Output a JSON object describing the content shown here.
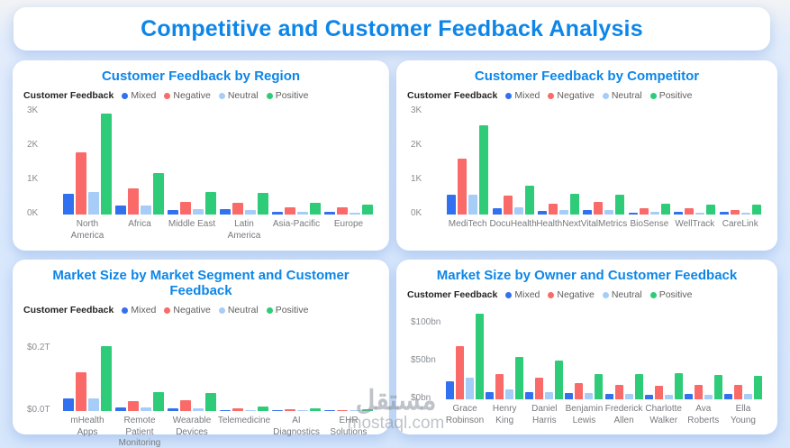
{
  "page": {
    "title": "Competitive and Customer Feedback Analysis"
  },
  "watermark": {
    "brand_arabic": "مستقل",
    "domain": "mostaql.com"
  },
  "colors": {
    "mixed": "#3170EF",
    "negative": "#F96A68",
    "neutral": "#A6CCF8",
    "positive": "#2ECB78",
    "accent_blue": "#0d86e8"
  },
  "chart_data": [
    {
      "type": "bar",
      "title": "Customer Feedback by Region",
      "legend_title": "Customer Feedback",
      "legend_position": "top-left",
      "grid": false,
      "categories": [
        "North America",
        "Africa",
        "Middle East",
        "Latin America",
        "Asia-Pacific",
        "Europe"
      ],
      "category_labels": [
        "North\nAmerica",
        "Africa",
        "Middle East",
        "Latin America",
        "Asia-Pacific",
        "Europe"
      ],
      "series": [
        {
          "name": "Mixed",
          "color": "#3170EF",
          "values": [
            600,
            250,
            130,
            160,
            70,
            80
          ]
        },
        {
          "name": "Negative",
          "color": "#F96A68",
          "values": [
            1800,
            770,
            360,
            350,
            200,
            200
          ]
        },
        {
          "name": "Neutral",
          "color": "#A6CCF8",
          "values": [
            650,
            270,
            150,
            140,
            80,
            60
          ]
        },
        {
          "name": "Positive",
          "color": "#2ECB78",
          "values": [
            2950,
            1200,
            650,
            640,
            330,
            300
          ]
        }
      ],
      "xlabel": "",
      "ylabel": "",
      "ylim": [
        0,
        3000
      ],
      "y_ticks": [
        {
          "label": "0K",
          "value": 0
        },
        {
          "label": "1K",
          "value": 1000
        },
        {
          "label": "2K",
          "value": 2000
        },
        {
          "label": "3K",
          "value": 3000
        }
      ]
    },
    {
      "type": "bar",
      "title": "Customer Feedback by Competitor",
      "legend_title": "Customer Feedback",
      "legend_position": "top-left",
      "grid": false,
      "categories": [
        "MediTech",
        "DocuHealth",
        "HealthNext",
        "VitalMetrics",
        "BioSense",
        "WellTrack",
        "CareLink"
      ],
      "category_labels": [
        "MediTech",
        "DocuHealth",
        "HealthNext",
        "VitalMetrics",
        "BioSense",
        "WellTrack",
        "CareLink"
      ],
      "series": [
        {
          "name": "Mixed",
          "color": "#3170EF",
          "values": [
            580,
            180,
            110,
            120,
            60,
            70,
            70
          ]
        },
        {
          "name": "Negative",
          "color": "#F96A68",
          "values": [
            1630,
            550,
            310,
            360,
            190,
            190,
            140
          ]
        },
        {
          "name": "Neutral",
          "color": "#A6CCF8",
          "values": [
            580,
            200,
            130,
            120,
            70,
            60,
            60
          ]
        },
        {
          "name": "Positive",
          "color": "#2ECB78",
          "values": [
            2600,
            850,
            600,
            570,
            310,
            280,
            280
          ]
        }
      ],
      "xlabel": "",
      "ylabel": "",
      "ylim": [
        0,
        3000
      ],
      "y_ticks": [
        {
          "label": "0K",
          "value": 0
        },
        {
          "label": "1K",
          "value": 1000
        },
        {
          "label": "2K",
          "value": 2000
        },
        {
          "label": "3K",
          "value": 3000
        }
      ]
    },
    {
      "type": "bar",
      "title": "Market Size by Market Segment and Customer Feedback",
      "legend_title": "Customer Feedback",
      "legend_position": "top-left",
      "grid": false,
      "units": "trillions USD",
      "categories": [
        "mHealth Apps",
        "Remote Patient Monitoring",
        "Wearable Devices",
        "Telemedicine",
        "AI Diagnostics",
        "EHR Solutions"
      ],
      "category_labels": [
        "mHealth\nApps",
        "Remote\nPatient\nMonitoring",
        "Wearable\nDevices",
        "Telemedicine",
        "AI\nDiagnostics",
        "EHR Solutions"
      ],
      "series": [
        {
          "name": "Mixed",
          "color": "#3170EF",
          "values": [
            0.04,
            0.011,
            0.009,
            0.003,
            0.002,
            0.001
          ]
        },
        {
          "name": "Negative",
          "color": "#F96A68",
          "values": [
            0.125,
            0.032,
            0.035,
            0.01,
            0.006,
            0.004
          ]
        },
        {
          "name": "Neutral",
          "color": "#A6CCF8",
          "values": [
            0.04,
            0.011,
            0.01,
            0.003,
            0.002,
            0.002
          ]
        },
        {
          "name": "Positive",
          "color": "#2ECB78",
          "values": [
            0.21,
            0.062,
            0.057,
            0.016,
            0.009,
            0.006
          ]
        }
      ],
      "xlabel": "",
      "ylabel": "",
      "ylim": [
        0,
        0.2
      ],
      "y_ticks": [
        {
          "label": "$0.0T",
          "value": 0
        },
        {
          "label": "$0.2T",
          "value": 0.2
        }
      ]
    },
    {
      "type": "bar",
      "title": "Market Size by Owner and Customer Feedback",
      "legend_title": "Customer Feedback",
      "legend_position": "top-left",
      "grid": false,
      "units": "billions USD",
      "categories": [
        "Grace Robinson",
        "Henry King",
        "Daniel Harris",
        "Benjamin Lewis",
        "Frederick Allen",
        "Charlotte Walker",
        "Ava Roberts",
        "Ella Young"
      ],
      "category_labels": [
        "Grace\nRobinson",
        "Henry\nKing",
        "Daniel\nHarris",
        "Benjamin\nLewis",
        "Frederick\nAllen",
        "Charlotte\nWalker",
        "Ava\nRoberts",
        "Ella Young"
      ],
      "series": [
        {
          "name": "Mixed",
          "color": "#3170EF",
          "values": [
            24,
            10,
            10,
            8,
            7,
            6,
            7,
            7
          ]
        },
        {
          "name": "Negative",
          "color": "#F96A68",
          "values": [
            70,
            33,
            28,
            21,
            19,
            18,
            19,
            19
          ]
        },
        {
          "name": "Neutral",
          "color": "#A6CCF8",
          "values": [
            28,
            13,
            10,
            8,
            7,
            6,
            6,
            7
          ]
        },
        {
          "name": "Positive",
          "color": "#2ECB78",
          "values": [
            113,
            56,
            51,
            33,
            33,
            34,
            32,
            31
          ]
        }
      ],
      "xlabel": "",
      "ylabel": "",
      "ylim": [
        0,
        100
      ],
      "y_ticks": [
        {
          "label": "$0bn",
          "value": 0
        },
        {
          "label": "$50bn",
          "value": 50
        },
        {
          "label": "$100bn",
          "value": 100
        }
      ]
    }
  ]
}
